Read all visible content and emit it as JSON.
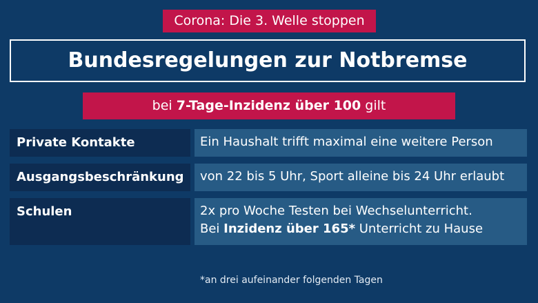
{
  "tag": "Corona: Die 3. Welle stoppen",
  "title": "Bundesregelungen zur Notbremse",
  "subtitle": {
    "prefix": "bei ",
    "bold": "7-Tage-Inzidenz über 100",
    "suffix": " gilt"
  },
  "rows": [
    {
      "label": "Private Kontakte",
      "value": "Ein Haushalt trifft maximal eine weitere Person"
    },
    {
      "label": "Ausgangsbeschränkung",
      "value": "von 22 bis 5 Uhr, Sport alleine bis 24 Uhr erlaubt"
    },
    {
      "label": "Schulen",
      "line1": "2x pro Woche Testen bei Wechselunterricht.",
      "line2_prefix": "Bei ",
      "line2_bold": "Inzidenz über 165*",
      "line2_suffix": " Unterricht zu Hause"
    }
  ],
  "footnote": "*an drei aufeinander folgenden Tagen",
  "colors": {
    "background": "#0e3a66",
    "accent": "#c2154a",
    "label_bg": "#0d2c52",
    "value_bg": "#275b85"
  }
}
